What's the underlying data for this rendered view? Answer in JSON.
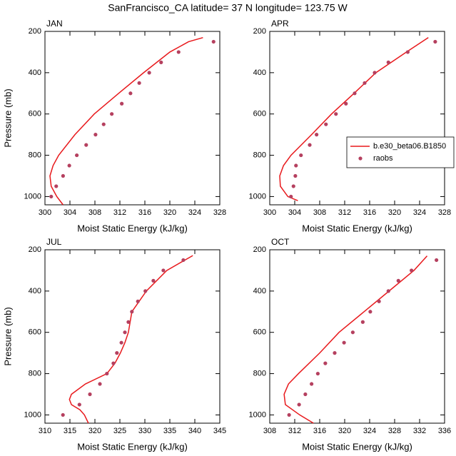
{
  "title": "SanFrancisco_CA  latitude= 37 N longitude= 123.75 W",
  "chart_data": [
    {
      "type": "line",
      "label": "JAN",
      "xlabel": "Moist Static Energy (kJ/kg)",
      "ylabel": "Pressure (mb)",
      "xlim": [
        300,
        328
      ],
      "xticks": [
        300,
        304,
        308,
        312,
        316,
        320,
        324,
        328
      ],
      "ylim": [
        200,
        1040
      ],
      "yticks": [
        200,
        400,
        600,
        800,
        1000
      ],
      "y_reversed": true,
      "series": [
        {
          "style": "line",
          "color": "#e8191c",
          "x": [
            325.3,
            323.0,
            320.0,
            315.8,
            311.8,
            307.9,
            304.8,
            302.2,
            301.3,
            300.8,
            301.0,
            301.9,
            302.9
          ],
          "y": [
            230,
            250,
            300,
            400,
            500,
            600,
            700,
            800,
            850,
            900,
            950,
            1000,
            1040
          ]
        },
        {
          "style": "markers",
          "color": "#b5405f",
          "x": [
            327.0,
            321.4,
            318.6,
            316.7,
            315.1,
            313.7,
            312.3,
            310.7,
            309.4,
            308.1,
            306.6,
            305.1,
            303.9,
            302.9,
            301.8,
            301.0
          ],
          "y": [
            250,
            300,
            350,
            400,
            450,
            500,
            550,
            600,
            650,
            700,
            750,
            800,
            850,
            900,
            950,
            1000
          ]
        }
      ]
    },
    {
      "type": "line",
      "label": "APR",
      "xlabel": "Moist Static Energy (kJ/kg)",
      "xlim": [
        300,
        328
      ],
      "xticks": [
        300,
        304,
        308,
        312,
        316,
        320,
        324,
        328
      ],
      "ylim": [
        200,
        1040
      ],
      "yticks": [
        200,
        400,
        600,
        800,
        1000
      ],
      "y_reversed": true,
      "legend": "right",
      "series": [
        {
          "name": "b.e30_beta06.B1850",
          "style": "line",
          "color": "#e8191c",
          "x": [
            325.4,
            321.9,
            317.0,
            313.5,
            309.9,
            306.7,
            303.4,
            302.2,
            301.6,
            301.7,
            302.9,
            304.5
          ],
          "y": [
            230,
            300,
            400,
            500,
            600,
            700,
            800,
            850,
            900,
            950,
            1000,
            1020
          ]
        },
        {
          "name": "raobs",
          "style": "markers",
          "color": "#b5405f",
          "x": [
            326.5,
            322.1,
            319.0,
            316.8,
            315.2,
            313.6,
            312.2,
            310.6,
            309.0,
            307.5,
            306.4,
            305.0,
            304.2,
            304.1,
            303.8,
            303.4
          ],
          "y": [
            250,
            300,
            350,
            400,
            450,
            500,
            550,
            600,
            650,
            700,
            750,
            800,
            850,
            900,
            950,
            1000
          ]
        }
      ]
    },
    {
      "type": "line",
      "label": "JUL",
      "xlabel": "Moist Static Energy (kJ/kg)",
      "ylabel": "Pressure (mb)",
      "xlim": [
        310,
        345
      ],
      "xticks": [
        310,
        315,
        320,
        325,
        330,
        335,
        340,
        345
      ],
      "ylim": [
        200,
        1040
      ],
      "yticks": [
        200,
        400,
        600,
        800,
        1000
      ],
      "y_reversed": true,
      "series": [
        {
          "style": "line",
          "color": "#e8191c",
          "x": [
            339.6,
            334.4,
            330.3,
            327.4,
            326.7,
            326.0,
            325.1,
            324.0,
            322.4,
            318.1,
            315.3,
            314.9,
            315.3,
            317.0,
            317.9,
            318.7
          ],
          "y": [
            228,
            300,
            400,
            500,
            600,
            650,
            700,
            750,
            800,
            850,
            900,
            925,
            950,
            975,
            1000,
            1040
          ]
        },
        {
          "style": "markers",
          "color": "#b5405f",
          "x": [
            337.7,
            333.7,
            331.7,
            330.1,
            328.6,
            327.4,
            326.7,
            326.0,
            325.3,
            324.4,
            323.7,
            322.4,
            321.0,
            319.0,
            316.9,
            313.6
          ],
          "y": [
            250,
            300,
            350,
            400,
            450,
            500,
            550,
            600,
            650,
            700,
            750,
            800,
            850,
            900,
            950,
            1000
          ]
        }
      ]
    },
    {
      "type": "line",
      "label": "OCT",
      "xlabel": "Moist Static Energy (kJ/kg)",
      "xlim": [
        308,
        336
      ],
      "xticks": [
        308,
        312,
        316,
        320,
        324,
        328,
        332,
        336
      ],
      "ylim": [
        200,
        1040
      ],
      "yticks": [
        200,
        400,
        600,
        800,
        1000
      ],
      "y_reversed": true,
      "series": [
        {
          "style": "line",
          "color": "#e8191c",
          "x": [
            333.2,
            331.1,
            327.1,
            323.1,
            319.1,
            316.0,
            312.6,
            311.0,
            310.3,
            310.5,
            312.8,
            315.0
          ],
          "y": [
            230,
            300,
            400,
            500,
            600,
            700,
            800,
            850,
            900,
            950,
            1000,
            1040
          ]
        },
        {
          "style": "markers",
          "color": "#b5405f",
          "x": [
            334.7,
            330.7,
            328.6,
            327.0,
            325.5,
            324.1,
            322.9,
            321.3,
            319.9,
            318.4,
            316.9,
            315.7,
            314.7,
            313.7,
            312.7,
            311.1
          ],
          "y": [
            250,
            300,
            350,
            400,
            450,
            500,
            550,
            600,
            650,
            700,
            750,
            800,
            850,
            900,
            950,
            1000
          ]
        }
      ]
    }
  ]
}
